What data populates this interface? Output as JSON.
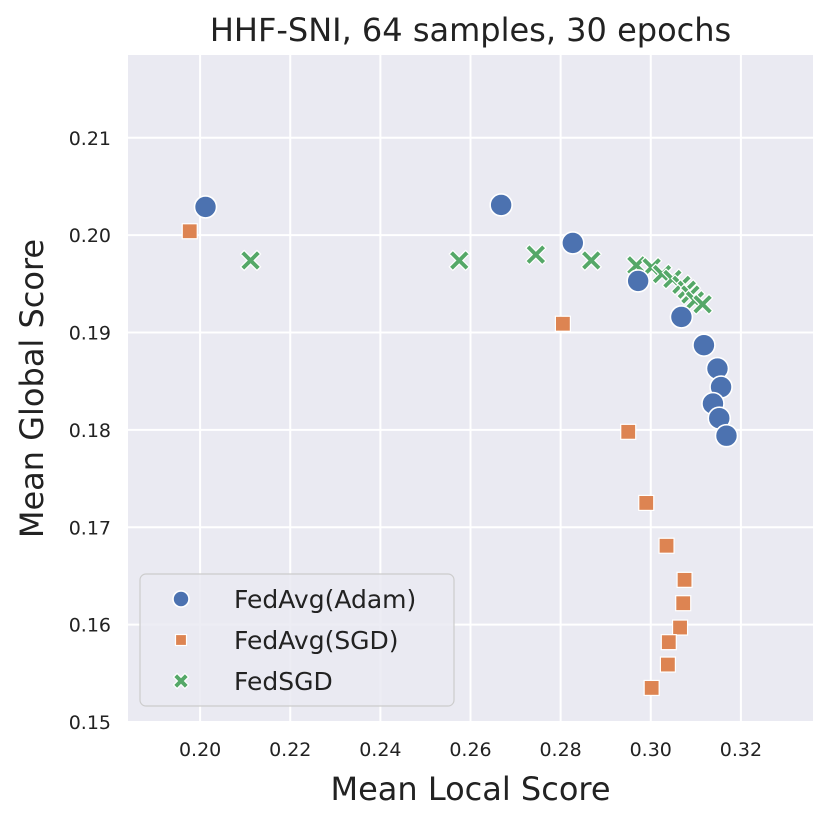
{
  "chart_data": {
    "type": "scatter",
    "title": "HHF-SNI, 64 samples, 30 epochs",
    "xlabel": "Mean Local Score",
    "ylabel": "Mean Global Score",
    "xlim": [
      0.184,
      0.336
    ],
    "ylim": [
      0.15,
      0.2185
    ],
    "xticks": [
      0.2,
      0.22,
      0.24,
      0.26,
      0.28,
      0.3,
      0.32
    ],
    "yticks": [
      0.15,
      0.16,
      0.17,
      0.18,
      0.19,
      0.2,
      0.21
    ],
    "grid": true,
    "legend_position": "lower-left",
    "series": [
      {
        "name": "FedAvg(Adam)",
        "marker": "circle",
        "color": "#4c72b0",
        "x": [
          0.2012,
          0.2668,
          0.2827,
          0.2972,
          0.3068,
          0.3118,
          0.3148,
          0.3156,
          0.3138,
          0.3152,
          0.3168
        ],
        "y": [
          0.2029,
          0.2031,
          0.1992,
          0.1953,
          0.1916,
          0.1887,
          0.1863,
          0.1844,
          0.1827,
          0.1812,
          0.1794
        ]
      },
      {
        "name": "FedAvg(SGD)",
        "marker": "square",
        "color": "#dd8452",
        "x": [
          0.1977,
          0.2805,
          0.295,
          0.299,
          0.3035,
          0.3075,
          0.3072,
          0.3065,
          0.304,
          0.3038,
          0.3002
        ],
        "y": [
          0.2004,
          0.1909,
          0.1798,
          0.1725,
          0.1681,
          0.1646,
          0.1622,
          0.1597,
          0.1582,
          0.1559,
          0.1535
        ]
      },
      {
        "name": "FedSGD",
        "marker": "x",
        "color": "#55a868",
        "x": [
          0.2112,
          0.2575,
          0.2745,
          0.2868,
          0.2968,
          0.3002,
          0.3025,
          0.3048,
          0.3068,
          0.308,
          0.3088,
          0.3098,
          0.3115
        ],
        "y": [
          0.1974,
          0.1974,
          0.198,
          0.1974,
          0.1969,
          0.1967,
          0.196,
          0.1955,
          0.1949,
          0.1944,
          0.1939,
          0.1933,
          0.1929
        ]
      }
    ]
  }
}
